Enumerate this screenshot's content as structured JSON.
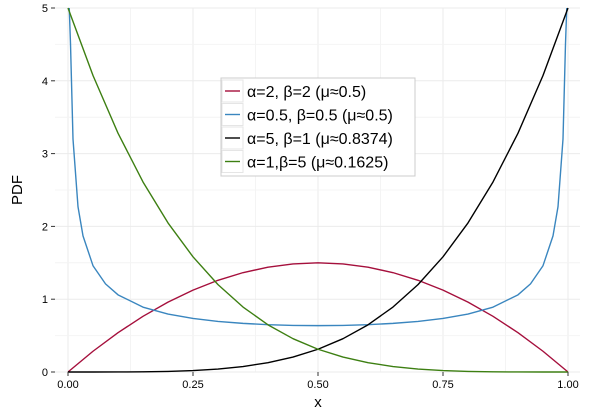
{
  "chart_data": {
    "type": "line",
    "xlabel": "x",
    "ylabel": "PDF",
    "xlim": [
      0,
      1
    ],
    "ylim": [
      0,
      5
    ],
    "x_ticks": [
      0,
      0.25,
      0.5,
      0.75,
      1
    ],
    "x_tick_labels": [
      "0.00",
      "0.25",
      "0.50",
      "0.75",
      "1.00"
    ],
    "y_ticks": [
      0,
      1,
      2,
      3,
      4,
      5
    ],
    "y_tick_labels": [
      "0",
      "1",
      "2",
      "3",
      "4",
      "5"
    ],
    "grid": true,
    "legend_position": "top-center",
    "series": [
      {
        "name": "α=2, β=2 (μ≈0.5)",
        "color": "#a50f3c",
        "x": [
          0,
          0.05,
          0.1,
          0.15,
          0.2,
          0.25,
          0.3,
          0.35,
          0.4,
          0.45,
          0.5,
          0.55,
          0.6,
          0.65,
          0.7,
          0.75,
          0.8,
          0.85,
          0.9,
          0.95,
          1
        ],
        "y": [
          0,
          0.285,
          0.54,
          0.765,
          0.96,
          1.125,
          1.26,
          1.365,
          1.44,
          1.485,
          1.5,
          1.485,
          1.44,
          1.365,
          1.26,
          1.125,
          0.96,
          0.765,
          0.54,
          0.285,
          0
        ]
      },
      {
        "name": "α=0.5, β=0.5 (μ≈0.5)",
        "color": "#3a86bf",
        "x": [
          0.0025,
          0.005,
          0.01,
          0.02,
          0.03,
          0.05,
          0.075,
          0.1,
          0.15,
          0.2,
          0.25,
          0.3,
          0.35,
          0.4,
          0.45,
          0.5,
          0.55,
          0.6,
          0.65,
          0.7,
          0.75,
          0.8,
          0.85,
          0.9,
          0.925,
          0.95,
          0.97,
          0.98,
          0.99,
          0.995,
          0.9975
        ],
        "y": [
          6.38,
          4.51,
          3.2,
          2.27,
          1.87,
          1.46,
          1.21,
          1.06,
          0.891,
          0.796,
          0.735,
          0.695,
          0.668,
          0.65,
          0.64,
          0.637,
          0.64,
          0.65,
          0.668,
          0.695,
          0.735,
          0.796,
          0.891,
          1.06,
          1.21,
          1.46,
          1.87,
          2.27,
          3.2,
          4.51,
          6.38
        ]
      },
      {
        "name": "α=5, β=1 (μ≈0.8374)",
        "color": "#000000",
        "x": [
          0,
          0.05,
          0.1,
          0.15,
          0.2,
          0.25,
          0.3,
          0.35,
          0.4,
          0.45,
          0.5,
          0.55,
          0.6,
          0.65,
          0.7,
          0.75,
          0.8,
          0.85,
          0.9,
          0.95,
          1
        ],
        "y": [
          0,
          0,
          0.0005,
          0.0025,
          0.008,
          0.0195,
          0.0405,
          0.075,
          0.128,
          0.205,
          0.3125,
          0.4575,
          0.648,
          0.8925,
          1.2005,
          1.582,
          2.048,
          2.61,
          3.2805,
          4.0725,
          5
        ]
      },
      {
        "name": "α=1,β=5 (μ≈0.1625)",
        "color": "#3d7f12",
        "x": [
          0,
          0.05,
          0.1,
          0.15,
          0.2,
          0.25,
          0.3,
          0.35,
          0.4,
          0.45,
          0.5,
          0.55,
          0.6,
          0.65,
          0.7,
          0.75,
          0.8,
          0.85,
          0.9,
          0.95,
          1
        ],
        "y": [
          5,
          4.0725,
          3.2805,
          2.61,
          2.048,
          1.582,
          1.2005,
          0.8925,
          0.648,
          0.4575,
          0.3125,
          0.205,
          0.128,
          0.075,
          0.0405,
          0.0195,
          0.008,
          0.0025,
          0.0005,
          0,
          0
        ]
      }
    ]
  }
}
